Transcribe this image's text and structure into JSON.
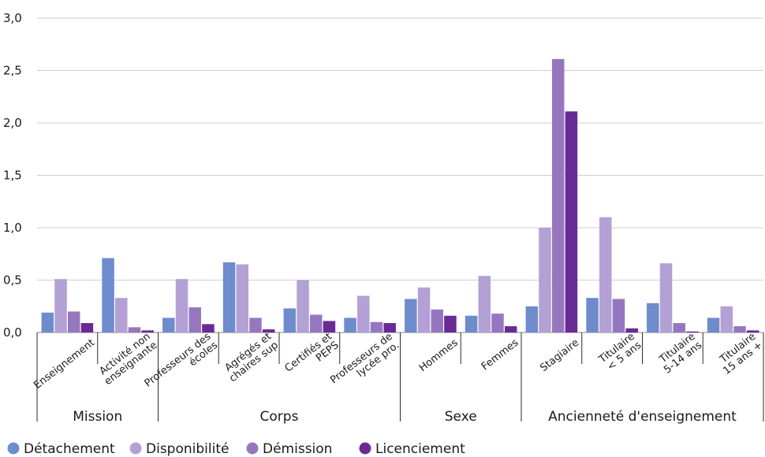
{
  "chart_data": {
    "type": "bar",
    "ylim": [
      0,
      3.0
    ],
    "y_ticks": [
      "0,0",
      "0,5",
      "1,0",
      "1,5",
      "2,0",
      "2,5",
      "3,0"
    ],
    "grid": true,
    "legend_position": "bottom-left",
    "categories": [
      [
        "Enseignement"
      ],
      [
        "Activité non",
        "enseignante"
      ],
      [
        "Professeurs des",
        "écoles"
      ],
      [
        "Agrégés et",
        "chaires sup"
      ],
      [
        "Certifiés et",
        "PEPS"
      ],
      [
        "Professeurs de",
        "lycée pro."
      ],
      [
        "Hommes"
      ],
      [
        "Femmes"
      ],
      [
        "Stagiaire"
      ],
      [
        "Titulaire",
        "< 5 ans"
      ],
      [
        "Titulaire",
        "5-14 ans"
      ],
      [
        "Titulaire",
        "15 ans +"
      ]
    ],
    "groups": [
      {
        "label": "Mission",
        "start": 0,
        "end": 1
      },
      {
        "label": "Corps",
        "start": 2,
        "end": 5
      },
      {
        "label": "Sexe",
        "start": 6,
        "end": 7
      },
      {
        "label": "Ancienneté d'enseignement",
        "start": 8,
        "end": 11
      }
    ],
    "series": [
      {
        "name": "Détachement",
        "color": "#6e8ccc",
        "values": [
          0.19,
          0.71,
          0.14,
          0.67,
          0.23,
          0.14,
          0.32,
          0.16,
          0.25,
          0.33,
          0.28,
          0.14
        ]
      },
      {
        "name": "Disponibilité",
        "color": "#b3a0d4",
        "values": [
          0.51,
          0.33,
          0.51,
          0.65,
          0.5,
          0.35,
          0.43,
          0.54,
          1.0,
          1.1,
          0.66,
          0.25
        ]
      },
      {
        "name": "Démission",
        "color": "#9677bf",
        "values": [
          0.2,
          0.05,
          0.24,
          0.14,
          0.17,
          0.1,
          0.22,
          0.18,
          2.61,
          0.32,
          0.09,
          0.06
        ]
      },
      {
        "name": "Licenciement",
        "color": "#6a2a96",
        "values": [
          0.09,
          0.02,
          0.08,
          0.03,
          0.11,
          0.09,
          0.16,
          0.06,
          2.11,
          0.04,
          0.01,
          0.02
        ]
      }
    ]
  }
}
